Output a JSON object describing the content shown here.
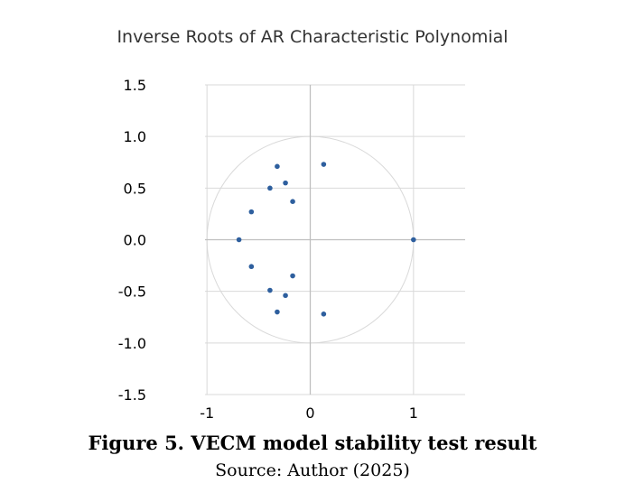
{
  "chart_data": {
    "type": "scatter",
    "title": "Inverse Roots of AR Characteristic Polynomial",
    "xlabel": "",
    "ylabel": "",
    "xlim": [
      -1.5,
      1.5
    ],
    "ylim": [
      -1.5,
      1.5
    ],
    "x_ticks": [
      -1,
      0,
      1
    ],
    "x_tick_labels": [
      "-1",
      "0",
      "1"
    ],
    "y_ticks": [
      1.5,
      1.0,
      0.5,
      0.0,
      -0.5,
      -1.0,
      -1.5
    ],
    "y_tick_labels": [
      "1.5",
      "1.0",
      "0.5",
      "0.0",
      "-0.5",
      "-1.0",
      "-1.5"
    ],
    "grid": true,
    "unit_circle": true,
    "points": [
      {
        "x": 0.13,
        "y": 0.73
      },
      {
        "x": -0.32,
        "y": 0.71
      },
      {
        "x": -0.24,
        "y": 0.55
      },
      {
        "x": -0.39,
        "y": 0.5
      },
      {
        "x": -0.17,
        "y": 0.37
      },
      {
        "x": -0.57,
        "y": 0.27
      },
      {
        "x": -0.69,
        "y": 0.0
      },
      {
        "x": 1.0,
        "y": 0.0
      },
      {
        "x": -0.57,
        "y": -0.26
      },
      {
        "x": -0.17,
        "y": -0.35
      },
      {
        "x": -0.39,
        "y": -0.49
      },
      {
        "x": -0.24,
        "y": -0.54
      },
      {
        "x": -0.32,
        "y": -0.7
      },
      {
        "x": 0.13,
        "y": -0.72
      }
    ],
    "point_color": "#2e5f9e",
    "circle_color": "#d9d9d9",
    "grid_color": "#d9d9d9",
    "axis_color": "#bfbfbf"
  },
  "caption": "Figure 5. VECM model stability test result",
  "source": "Source: Author (2025)"
}
